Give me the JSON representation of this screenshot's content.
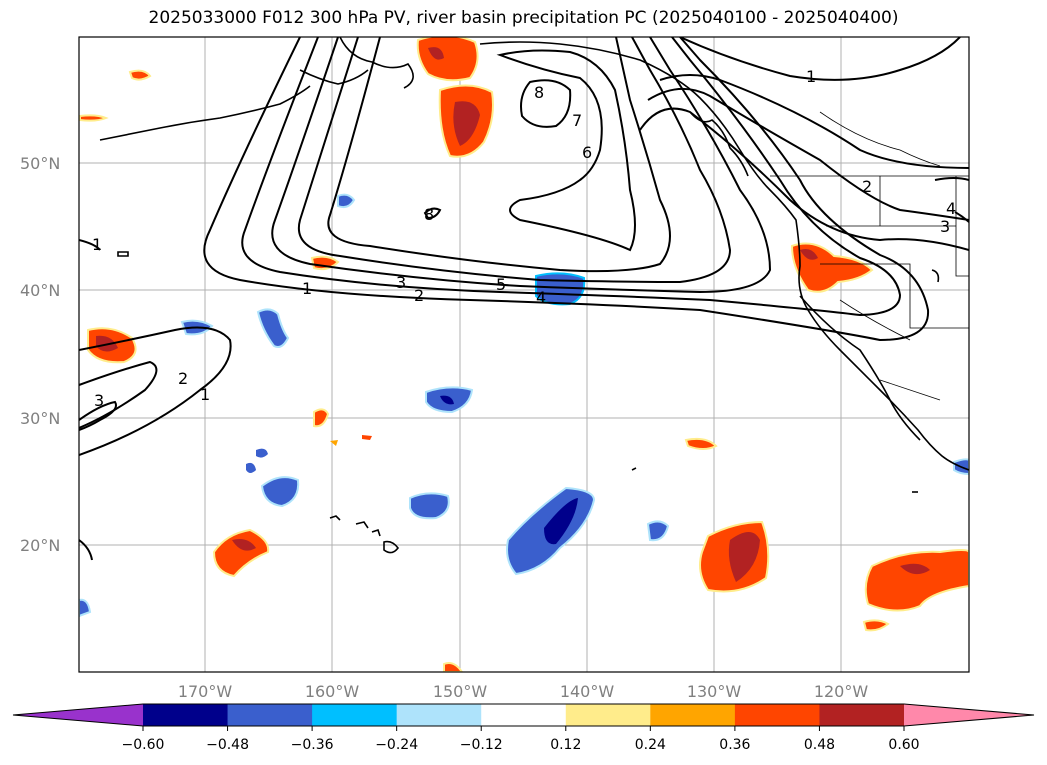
{
  "title": "2025033000 F012 300 hPa PV, river basin precipitation PC (2025040100 - 2025040400)",
  "lat_ticks": [
    "50°N",
    "40°N",
    "30°N",
    "20°N"
  ],
  "lon_ticks": [
    "170°W",
    "160°W",
    "150°W",
    "140°W",
    "130°W",
    "120°W"
  ],
  "pv_contour_labels": [
    "1",
    "2",
    "3",
    "4",
    "5",
    "6",
    "7",
    "8"
  ],
  "colorbar": {
    "tick_labels": [
      "−0.60",
      "−0.48",
      "−0.36",
      "−0.24",
      "−0.12",
      "0.12",
      "0.24",
      "0.36",
      "0.48",
      "0.60"
    ],
    "colors": [
      "#9932cc",
      "#00008b",
      "#3a5fcd",
      "#00bfff",
      "#aee3fb",
      "#ffffff",
      "#ffec8b",
      "#ffa500",
      "#ff4500",
      "#b22222",
      "#ff88aa"
    ]
  }
}
